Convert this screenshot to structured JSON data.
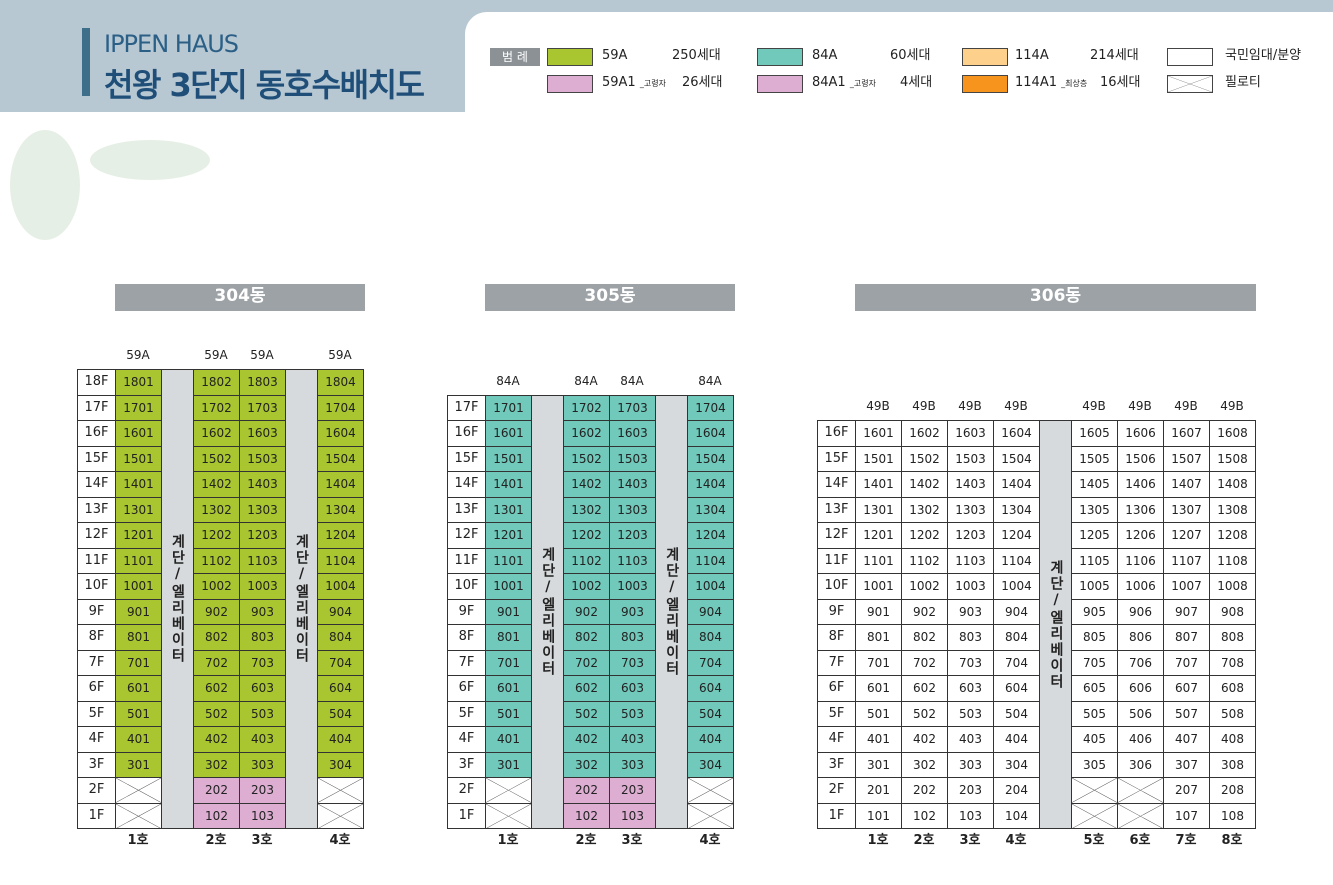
{
  "header": {
    "brand": "IPPEN HAUS",
    "title": "천왕 3단지 동호수배치도"
  },
  "legend": {
    "label": "범 례",
    "items": [
      {
        "name": "59A",
        "count": "250세대",
        "color": "#a9c631"
      },
      {
        "name": "84A",
        "count": "60세대",
        "color": "#70c9ba"
      },
      {
        "name": "114A",
        "count": "214세대",
        "color": "#fdd08c"
      },
      {
        "name": "국민임대/분양",
        "color": "#ffffff"
      },
      {
        "name": "59A1",
        "note": "_고령자",
        "count": "26세대",
        "color": "#ddaed2"
      },
      {
        "name": "84A1",
        "note": "_고령자",
        "count": "4세대",
        "color": "#ddaed2"
      },
      {
        "name": "114A1",
        "note": "_최상층",
        "count": "16세대",
        "color": "#f7941d"
      },
      {
        "name": "필로티",
        "pattern": "cross"
      }
    ]
  },
  "buildings": [
    {
      "name": "304동",
      "fill": "59A",
      "columns": [
        {
          "type": "59A",
          "label": "1호"
        },
        {
          "core": "계단/엘리베이터"
        },
        {
          "type": "59A",
          "label": "2호"
        },
        {
          "type": "59A",
          "label": "3호"
        },
        {
          "core": "계단/엘리베이터"
        },
        {
          "type": "59A",
          "label": "4호"
        }
      ],
      "floors": [
        {
          "label": "18F",
          "units": [
            "1801",
            "1802",
            "1803",
            "1804"
          ]
        },
        {
          "label": "17F",
          "units": [
            "1701",
            "1702",
            "1703",
            "1704"
          ]
        },
        {
          "label": "16F",
          "units": [
            "1601",
            "1602",
            "1603",
            "1604"
          ]
        },
        {
          "label": "15F",
          "units": [
            "1501",
            "1502",
            "1503",
            "1504"
          ]
        },
        {
          "label": "14F",
          "units": [
            "1401",
            "1402",
            "1403",
            "1404"
          ]
        },
        {
          "label": "13F",
          "units": [
            "1301",
            "1302",
            "1303",
            "1304"
          ]
        },
        {
          "label": "12F",
          "units": [
            "1201",
            "1202",
            "1203",
            "1204"
          ]
        },
        {
          "label": "11F",
          "units": [
            "1101",
            "1102",
            "1103",
            "1104"
          ]
        },
        {
          "label": "10F",
          "units": [
            "1001",
            "1002",
            "1003",
            "1004"
          ]
        },
        {
          "label": "9F",
          "units": [
            "901",
            "902",
            "903",
            "904"
          ]
        },
        {
          "label": "8F",
          "units": [
            "801",
            "802",
            "803",
            "804"
          ]
        },
        {
          "label": "7F",
          "units": [
            "701",
            "702",
            "703",
            "704"
          ]
        },
        {
          "label": "6F",
          "units": [
            "601",
            "602",
            "603",
            "604"
          ]
        },
        {
          "label": "5F",
          "units": [
            "501",
            "502",
            "503",
            "504"
          ]
        },
        {
          "label": "4F",
          "units": [
            "401",
            "402",
            "403",
            "404"
          ]
        },
        {
          "label": "3F",
          "units": [
            "301",
            "302",
            "303",
            "304"
          ]
        },
        {
          "label": "2F",
          "fill": "59A1",
          "units": [
            null,
            "202",
            "203",
            null
          ]
        },
        {
          "label": "1F",
          "fill": "59A1",
          "units": [
            null,
            "102",
            "103",
            null
          ]
        }
      ]
    },
    {
      "name": "305동",
      "fill": "84A",
      "columns": [
        {
          "type": "84A",
          "label": "1호"
        },
        {
          "core": "계단/엘리베이터"
        },
        {
          "type": "84A",
          "label": "2호"
        },
        {
          "type": "84A",
          "label": "3호"
        },
        {
          "core": "계단/엘리베이터"
        },
        {
          "type": "84A",
          "label": "4호"
        }
      ],
      "floors": [
        {
          "label": "17F",
          "units": [
            "1701",
            "1702",
            "1703",
            "1704"
          ]
        },
        {
          "label": "16F",
          "units": [
            "1601",
            "1602",
            "1603",
            "1604"
          ]
        },
        {
          "label": "15F",
          "units": [
            "1501",
            "1502",
            "1503",
            "1504"
          ]
        },
        {
          "label": "14F",
          "units": [
            "1401",
            "1402",
            "1403",
            "1404"
          ]
        },
        {
          "label": "13F",
          "units": [
            "1301",
            "1302",
            "1303",
            "1304"
          ]
        },
        {
          "label": "12F",
          "units": [
            "1201",
            "1202",
            "1203",
            "1204"
          ]
        },
        {
          "label": "11F",
          "units": [
            "1101",
            "1102",
            "1103",
            "1104"
          ]
        },
        {
          "label": "10F",
          "units": [
            "1001",
            "1002",
            "1003",
            "1004"
          ]
        },
        {
          "label": "9F",
          "units": [
            "901",
            "902",
            "903",
            "904"
          ]
        },
        {
          "label": "8F",
          "units": [
            "801",
            "802",
            "803",
            "804"
          ]
        },
        {
          "label": "7F",
          "units": [
            "701",
            "702",
            "703",
            "704"
          ]
        },
        {
          "label": "6F",
          "units": [
            "601",
            "602",
            "603",
            "604"
          ]
        },
        {
          "label": "5F",
          "units": [
            "501",
            "502",
            "503",
            "504"
          ]
        },
        {
          "label": "4F",
          "units": [
            "401",
            "402",
            "403",
            "404"
          ]
        },
        {
          "label": "3F",
          "units": [
            "301",
            "302",
            "303",
            "304"
          ]
        },
        {
          "label": "2F",
          "fill": "84A1",
          "units": [
            null,
            "202",
            "203",
            null
          ]
        },
        {
          "label": "1F",
          "fill": "84A1",
          "units": [
            null,
            "102",
            "103",
            null
          ]
        }
      ]
    },
    {
      "name": "306동",
      "fill": "국민임대/분양",
      "columns": [
        {
          "type": "49B",
          "label": "1호"
        },
        {
          "type": "49B",
          "label": "2호"
        },
        {
          "type": "49B",
          "label": "3호"
        },
        {
          "type": "49B",
          "label": "4호"
        },
        {
          "core": "계단/엘리베이터"
        },
        {
          "type": "49B",
          "label": "5호"
        },
        {
          "type": "49B",
          "label": "6호"
        },
        {
          "type": "49B",
          "label": "7호"
        },
        {
          "type": "49B",
          "label": "8호"
        }
      ],
      "floors": [
        {
          "label": "16F",
          "units": [
            "1601",
            "1602",
            "1603",
            "1604",
            "1605",
            "1606",
            "1607",
            "1608"
          ]
        },
        {
          "label": "15F",
          "units": [
            "1501",
            "1502",
            "1503",
            "1504",
            "1505",
            "1506",
            "1507",
            "1508"
          ]
        },
        {
          "label": "14F",
          "units": [
            "1401",
            "1402",
            "1403",
            "1404",
            "1405",
            "1406",
            "1407",
            "1408"
          ]
        },
        {
          "label": "13F",
          "units": [
            "1301",
            "1302",
            "1303",
            "1304",
            "1305",
            "1306",
            "1307",
            "1308"
          ]
        },
        {
          "label": "12F",
          "units": [
            "1201",
            "1202",
            "1203",
            "1204",
            "1205",
            "1206",
            "1207",
            "1208"
          ]
        },
        {
          "label": "11F",
          "units": [
            "1101",
            "1102",
            "1103",
            "1104",
            "1105",
            "1106",
            "1107",
            "1108"
          ]
        },
        {
          "label": "10F",
          "units": [
            "1001",
            "1002",
            "1003",
            "1004",
            "1005",
            "1006",
            "1007",
            "1008"
          ]
        },
        {
          "label": "9F",
          "units": [
            "901",
            "902",
            "903",
            "904",
            "905",
            "906",
            "907",
            "908"
          ]
        },
        {
          "label": "8F",
          "units": [
            "801",
            "802",
            "803",
            "804",
            "805",
            "806",
            "807",
            "808"
          ]
        },
        {
          "label": "7F",
          "units": [
            "701",
            "702",
            "703",
            "704",
            "705",
            "706",
            "707",
            "708"
          ]
        },
        {
          "label": "6F",
          "units": [
            "601",
            "602",
            "603",
            "604",
            "605",
            "606",
            "607",
            "608"
          ]
        },
        {
          "label": "5F",
          "units": [
            "501",
            "502",
            "503",
            "504",
            "505",
            "506",
            "507",
            "508"
          ]
        },
        {
          "label": "4F",
          "units": [
            "401",
            "402",
            "403",
            "404",
            "405",
            "406",
            "407",
            "408"
          ]
        },
        {
          "label": "3F",
          "units": [
            "301",
            "302",
            "303",
            "304",
            "305",
            "306",
            "307",
            "308"
          ]
        },
        {
          "label": "2F",
          "units": [
            "201",
            "202",
            "203",
            "204",
            null,
            null,
            "207",
            "208"
          ]
        },
        {
          "label": "1F",
          "units": [
            "101",
            "102",
            "103",
            "104",
            null,
            null,
            "107",
            "108"
          ]
        }
      ]
    }
  ]
}
